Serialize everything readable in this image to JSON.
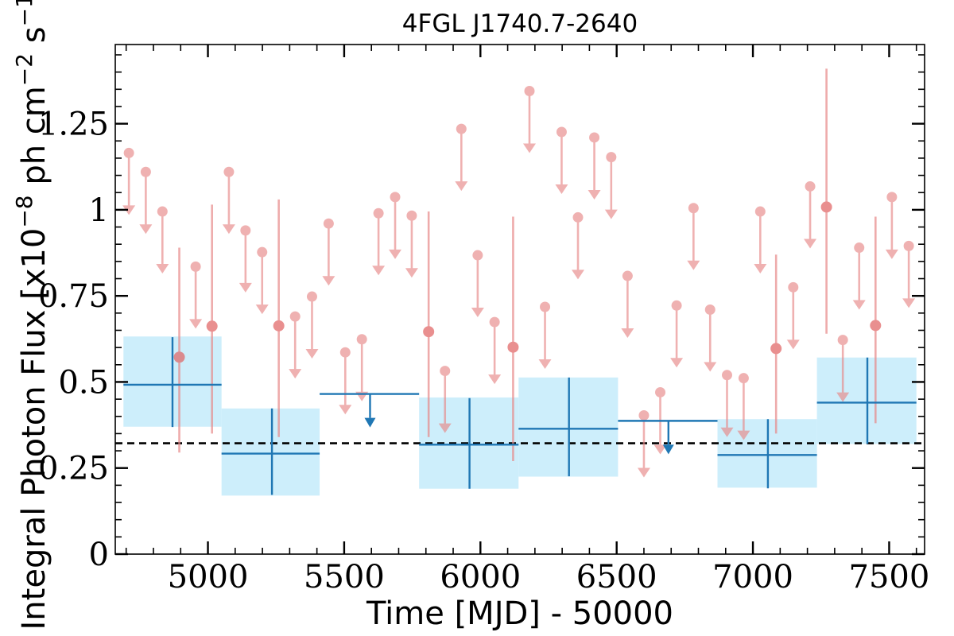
{
  "chart_data": {
    "type": "scatter",
    "title": "4FGL J1740.7-2640",
    "xlabel": "Time [MJD] - 50000",
    "ylabel": "Integral Photon Flux [x10",
    "ylabel_exp": "−8",
    "ylabel_mid": " ph cm",
    "ylabel_exp2": "−2",
    "ylabel_end": " s",
    "ylabel_exp3": "−1",
    "ylabel_close": "]",
    "xlim": [
      4660,
      7630
    ],
    "ylim": [
      0,
      1.48
    ],
    "x_ticks": [
      5000,
      5500,
      6000,
      6500,
      7000,
      7500
    ],
    "x_tick_labels": [
      "5000",
      "5500",
      "6000",
      "6500",
      "7000",
      "7500"
    ],
    "y_ticks": [
      0,
      0.25,
      0.5,
      0.75,
      1,
      1.25
    ],
    "y_tick_labels": [
      "0",
      "0.25",
      "0.5",
      "0.75",
      "1",
      "1.25"
    ],
    "mean_flux": 0.322,
    "colors": {
      "fine_points": "#e88888",
      "coarse_line": "#1f77b4",
      "coarse_fill": "#cdeefb",
      "mean_line": "#000000"
    },
    "series": [
      {
        "role": "coarse-bins",
        "bins": [
          {
            "x": 4870,
            "x0": 4690,
            "x1": 5050,
            "y": 0.492,
            "yerr_lo": 0.123,
            "yerr_hi": 0.138,
            "box_lo": 0.37,
            "box_hi": 0.632
          },
          {
            "x": 5235,
            "x0": 5050,
            "x1": 5410,
            "y": 0.292,
            "yerr_lo": 0.12,
            "yerr_hi": 0.131,
            "box_lo": 0.17,
            "box_hi": 0.423
          },
          {
            "x": 5960,
            "x0": 5775,
            "x1": 6140,
            "y": 0.318,
            "yerr_lo": 0.128,
            "yerr_hi": 0.135,
            "box_lo": 0.19,
            "box_hi": 0.455
          },
          {
            "x": 6325,
            "x0": 6140,
            "x1": 6505,
            "y": 0.364,
            "yerr_lo": 0.138,
            "yerr_hi": 0.149,
            "box_lo": 0.225,
            "box_hi": 0.513
          },
          {
            "x": 7055,
            "x0": 6870,
            "x1": 7235,
            "y": 0.288,
            "yerr_lo": 0.097,
            "yerr_hi": 0.104,
            "box_lo": 0.193,
            "box_hi": 0.392
          },
          {
            "x": 7420,
            "x0": 7235,
            "x1": 7600,
            "y": 0.44,
            "yerr_lo": 0.12,
            "yerr_hi": 0.131,
            "box_lo": 0.32,
            "box_hi": 0.571
          }
        ],
        "upper_limits": [
          {
            "x": 5595,
            "x0": 5410,
            "x1": 5775,
            "y": 0.465
          },
          {
            "x": 6690,
            "x0": 6505,
            "x1": 6870,
            "y": 0.387
          }
        ]
      },
      {
        "role": "fine-bins",
        "detections": [
          {
            "x": 4895,
            "y": 0.572,
            "lo": 0.295,
            "hi": 0.89
          },
          {
            "x": 5015,
            "y": 0.662,
            "lo": 0.35,
            "hi": 1.015
          },
          {
            "x": 5260,
            "y": 0.663,
            "lo": 0.34,
            "hi": 1.03
          },
          {
            "x": 5810,
            "y": 0.646,
            "lo": 0.34,
            "hi": 0.995
          },
          {
            "x": 6120,
            "y": 0.601,
            "lo": 0.27,
            "hi": 0.98
          },
          {
            "x": 7085,
            "y": 0.597,
            "lo": 0.35,
            "hi": 0.87
          },
          {
            "x": 7270,
            "y": 1.008,
            "lo": 0.64,
            "hi": 1.41
          },
          {
            "x": 7450,
            "y": 0.664,
            "lo": 0.38,
            "hi": 0.98
          }
        ],
        "upper_limits": [
          {
            "x": 4710,
            "y": 1.165
          },
          {
            "x": 4772,
            "y": 1.11
          },
          {
            "x": 4833,
            "y": 0.995
          },
          {
            "x": 4955,
            "y": 0.835
          },
          {
            "x": 5077,
            "y": 1.11
          },
          {
            "x": 5138,
            "y": 0.94
          },
          {
            "x": 5199,
            "y": 0.877
          },
          {
            "x": 5320,
            "y": 0.69
          },
          {
            "x": 5382,
            "y": 0.748
          },
          {
            "x": 5443,
            "y": 0.96
          },
          {
            "x": 5504,
            "y": 0.586
          },
          {
            "x": 5565,
            "y": 0.624
          },
          {
            "x": 5626,
            "y": 0.99
          },
          {
            "x": 5687,
            "y": 1.037
          },
          {
            "x": 5748,
            "y": 0.983
          },
          {
            "x": 5870,
            "y": 0.532
          },
          {
            "x": 5930,
            "y": 1.235
          },
          {
            "x": 5990,
            "y": 0.868
          },
          {
            "x": 6052,
            "y": 0.674
          },
          {
            "x": 6180,
            "y": 1.345
          },
          {
            "x": 6237,
            "y": 0.718
          },
          {
            "x": 6298,
            "y": 1.226
          },
          {
            "x": 6358,
            "y": 0.978
          },
          {
            "x": 6418,
            "y": 1.21
          },
          {
            "x": 6480,
            "y": 1.153
          },
          {
            "x": 6540,
            "y": 0.808
          },
          {
            "x": 6600,
            "y": 0.403
          },
          {
            "x": 6660,
            "y": 0.47
          },
          {
            "x": 6720,
            "y": 0.722
          },
          {
            "x": 6782,
            "y": 1.005
          },
          {
            "x": 6843,
            "y": 0.71
          },
          {
            "x": 6905,
            "y": 0.52
          },
          {
            "x": 6966,
            "y": 0.511
          },
          {
            "x": 7027,
            "y": 0.995
          },
          {
            "x": 7148,
            "y": 0.775
          },
          {
            "x": 7210,
            "y": 1.068
          },
          {
            "x": 7330,
            "y": 0.622
          },
          {
            "x": 7390,
            "y": 0.89
          },
          {
            "x": 7510,
            "y": 1.037
          },
          {
            "x": 7572,
            "y": 0.895
          }
        ]
      }
    ]
  }
}
